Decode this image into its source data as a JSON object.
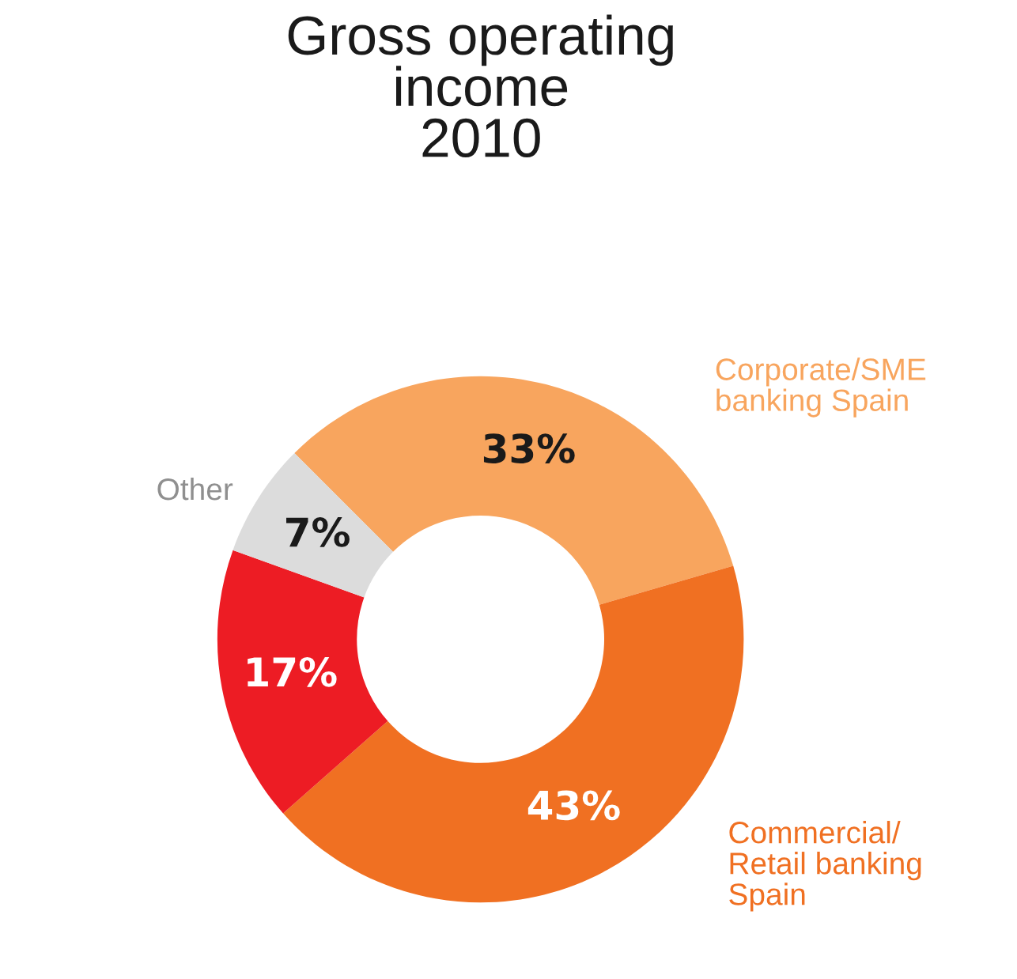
{
  "chart_data": {
    "type": "donut",
    "title": "Gross operating\nincome\n2010",
    "categories": [
      "Corporate/SME\nbanking Spain",
      "Commercial/\nRetail banking\nSpain",
      null,
      "Other"
    ],
    "values": [
      33,
      43,
      17,
      7
    ],
    "colors": [
      "#f8a55e",
      "#f07022",
      "#ed1c24",
      "#dcdcdc"
    ],
    "value_labels": [
      "33%",
      "43%",
      "17%",
      "7%"
    ],
    "legend": false
  }
}
